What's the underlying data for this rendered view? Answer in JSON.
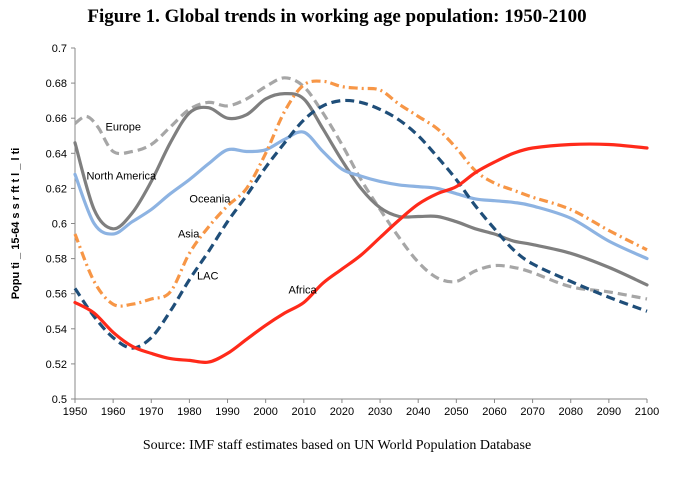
{
  "figure": {
    "title": "Figure 1. Global trends in working age population: 1950-2100",
    "source": "Source: IMF staff estimates based on UN World Population Database"
  },
  "chart_data": {
    "type": "line",
    "title": "Figure 1. Global trends in working age population: 1950-2100",
    "xlabel": "",
    "ylabel": "Popu ti _ 15-64 s s r ft t l _ l ti",
    "xlim": [
      1950,
      2100
    ],
    "ylim": [
      0.5,
      0.7
    ],
    "x_ticks": [
      "1950",
      "1960",
      "1970",
      "1980",
      "1990",
      "2000",
      "2010",
      "2020",
      "2030",
      "2040",
      "2050",
      "2060",
      "2070",
      "2080",
      "2090",
      "2100"
    ],
    "y_ticks": [
      "0.5",
      "0.52",
      "0.54",
      "0.56",
      "0.58",
      "0.6",
      "0.62",
      "0.64",
      "0.66",
      "0.68",
      "0.7"
    ],
    "legend": "inline labels",
    "grid": false,
    "series": [
      {
        "name": "Europe",
        "color": "#a6a6a6",
        "dash": "dashed",
        "label_at": [
          1958,
          0.653
        ],
        "points": [
          [
            1950,
            0.657
          ],
          [
            1953,
            0.661
          ],
          [
            1956,
            0.655
          ],
          [
            1960,
            0.641
          ],
          [
            1965,
            0.641
          ],
          [
            1970,
            0.645
          ],
          [
            1975,
            0.655
          ],
          [
            1980,
            0.665
          ],
          [
            1985,
            0.669
          ],
          [
            1990,
            0.667
          ],
          [
            1995,
            0.671
          ],
          [
            2000,
            0.678
          ],
          [
            2005,
            0.683
          ],
          [
            2010,
            0.678
          ],
          [
            2015,
            0.663
          ],
          [
            2020,
            0.645
          ],
          [
            2025,
            0.625
          ],
          [
            2030,
            0.608
          ],
          [
            2035,
            0.592
          ],
          [
            2040,
            0.578
          ],
          [
            2045,
            0.569
          ],
          [
            2050,
            0.567
          ],
          [
            2055,
            0.573
          ],
          [
            2060,
            0.576
          ],
          [
            2065,
            0.575
          ],
          [
            2070,
            0.572
          ],
          [
            2080,
            0.564
          ],
          [
            2090,
            0.561
          ],
          [
            2100,
            0.557
          ]
        ]
      },
      {
        "name": "North America",
        "color": "#7f7f7f",
        "dash": "solid",
        "label_at": [
          1953,
          0.625
        ],
        "points": [
          [
            1950,
            0.646
          ],
          [
            1955,
            0.608
          ],
          [
            1960,
            0.597
          ],
          [
            1965,
            0.606
          ],
          [
            1970,
            0.624
          ],
          [
            1975,
            0.646
          ],
          [
            1980,
            0.663
          ],
          [
            1985,
            0.666
          ],
          [
            1990,
            0.66
          ],
          [
            1995,
            0.662
          ],
          [
            2000,
            0.671
          ],
          [
            2005,
            0.674
          ],
          [
            2010,
            0.671
          ],
          [
            2015,
            0.654
          ],
          [
            2020,
            0.636
          ],
          [
            2025,
            0.62
          ],
          [
            2030,
            0.609
          ],
          [
            2035,
            0.604
          ],
          [
            2040,
            0.604
          ],
          [
            2045,
            0.604
          ],
          [
            2050,
            0.601
          ],
          [
            2055,
            0.597
          ],
          [
            2060,
            0.594
          ],
          [
            2065,
            0.59
          ],
          [
            2070,
            0.588
          ],
          [
            2080,
            0.583
          ],
          [
            2090,
            0.575
          ],
          [
            2100,
            0.565
          ]
        ]
      },
      {
        "name": "Oceania",
        "color": "#8db3e2",
        "dash": "solid",
        "label_at": [
          1980,
          0.612
        ],
        "points": [
          [
            1950,
            0.628
          ],
          [
            1955,
            0.6
          ],
          [
            1960,
            0.594
          ],
          [
            1965,
            0.601
          ],
          [
            1970,
            0.608
          ],
          [
            1975,
            0.617
          ],
          [
            1980,
            0.625
          ],
          [
            1985,
            0.634
          ],
          [
            1990,
            0.642
          ],
          [
            1995,
            0.641
          ],
          [
            2000,
            0.642
          ],
          [
            2005,
            0.648
          ],
          [
            2010,
            0.652
          ],
          [
            2015,
            0.641
          ],
          [
            2020,
            0.631
          ],
          [
            2025,
            0.627
          ],
          [
            2030,
            0.624
          ],
          [
            2035,
            0.622
          ],
          [
            2040,
            0.621
          ],
          [
            2045,
            0.62
          ],
          [
            2050,
            0.617
          ],
          [
            2055,
            0.614
          ],
          [
            2060,
            0.613
          ],
          [
            2065,
            0.612
          ],
          [
            2070,
            0.61
          ],
          [
            2080,
            0.603
          ],
          [
            2090,
            0.59
          ],
          [
            2100,
            0.58
          ]
        ]
      },
      {
        "name": "Asia",
        "color": "#f79646",
        "dash": "dashdot",
        "label_at": [
          1977,
          0.592
        ],
        "points": [
          [
            1950,
            0.594
          ],
          [
            1955,
            0.567
          ],
          [
            1960,
            0.554
          ],
          [
            1965,
            0.554
          ],
          [
            1970,
            0.557
          ],
          [
            1975,
            0.561
          ],
          [
            1980,
            0.583
          ],
          [
            1985,
            0.598
          ],
          [
            1990,
            0.61
          ],
          [
            1995,
            0.62
          ],
          [
            2000,
            0.64
          ],
          [
            2005,
            0.664
          ],
          [
            2010,
            0.679
          ],
          [
            2015,
            0.681
          ],
          [
            2020,
            0.678
          ],
          [
            2025,
            0.677
          ],
          [
            2030,
            0.676
          ],
          [
            2035,
            0.668
          ],
          [
            2040,
            0.661
          ],
          [
            2045,
            0.654
          ],
          [
            2050,
            0.643
          ],
          [
            2055,
            0.63
          ],
          [
            2060,
            0.623
          ],
          [
            2065,
            0.619
          ],
          [
            2070,
            0.615
          ],
          [
            2080,
            0.608
          ],
          [
            2090,
            0.596
          ],
          [
            2100,
            0.585
          ]
        ]
      },
      {
        "name": "LAC",
        "color": "#1f4e79",
        "dash": "dashed",
        "label_at": [
          1982,
          0.568
        ],
        "points": [
          [
            1950,
            0.563
          ],
          [
            1955,
            0.547
          ],
          [
            1960,
            0.535
          ],
          [
            1965,
            0.529
          ],
          [
            1970,
            0.535
          ],
          [
            1975,
            0.55
          ],
          [
            1980,
            0.568
          ],
          [
            1985,
            0.584
          ],
          [
            1990,
            0.601
          ],
          [
            1995,
            0.616
          ],
          [
            2000,
            0.632
          ],
          [
            2005,
            0.646
          ],
          [
            2010,
            0.659
          ],
          [
            2015,
            0.667
          ],
          [
            2020,
            0.67
          ],
          [
            2025,
            0.669
          ],
          [
            2030,
            0.665
          ],
          [
            2035,
            0.659
          ],
          [
            2040,
            0.65
          ],
          [
            2045,
            0.638
          ],
          [
            2050,
            0.625
          ],
          [
            2055,
            0.61
          ],
          [
            2060,
            0.597
          ],
          [
            2065,
            0.585
          ],
          [
            2070,
            0.577
          ],
          [
            2080,
            0.567
          ],
          [
            2090,
            0.558
          ],
          [
            2100,
            0.55
          ]
        ]
      },
      {
        "name": "Africa",
        "color": "#ff2a1a",
        "dash": "solid",
        "label_at": [
          2006,
          0.56
        ],
        "points": [
          [
            1950,
            0.555
          ],
          [
            1955,
            0.549
          ],
          [
            1960,
            0.538
          ],
          [
            1965,
            0.53
          ],
          [
            1970,
            0.526
          ],
          [
            1975,
            0.523
          ],
          [
            1980,
            0.522
          ],
          [
            1985,
            0.521
          ],
          [
            1990,
            0.526
          ],
          [
            1995,
            0.534
          ],
          [
            2000,
            0.542
          ],
          [
            2005,
            0.549
          ],
          [
            2010,
            0.555
          ],
          [
            2015,
            0.566
          ],
          [
            2020,
            0.574
          ],
          [
            2025,
            0.582
          ],
          [
            2030,
            0.592
          ],
          [
            2035,
            0.602
          ],
          [
            2040,
            0.611
          ],
          [
            2045,
            0.617
          ],
          [
            2050,
            0.621
          ],
          [
            2055,
            0.629
          ],
          [
            2060,
            0.635
          ],
          [
            2065,
            0.64
          ],
          [
            2070,
            0.643
          ],
          [
            2080,
            0.645
          ],
          [
            2090,
            0.645
          ],
          [
            2100,
            0.643
          ]
        ]
      }
    ]
  }
}
